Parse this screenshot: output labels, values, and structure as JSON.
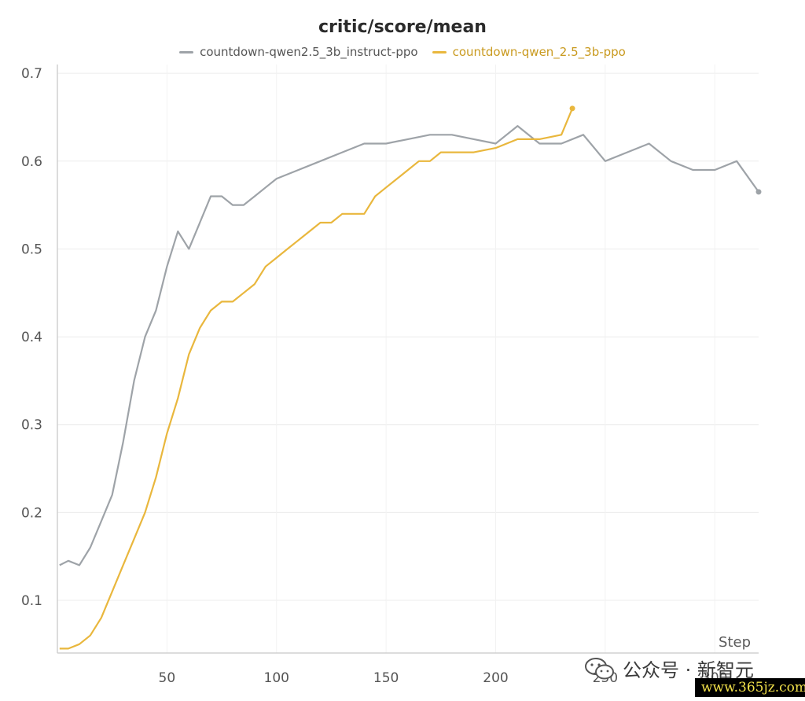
{
  "chart_data": {
    "type": "line",
    "title": "critic/score/mean",
    "xlabel": "Step",
    "ylabel": "",
    "xlim": [
      0,
      320
    ],
    "ylim": [
      0.04,
      0.71
    ],
    "grid": true,
    "legend_position": "top-center",
    "x_ticks": [
      50,
      100,
      150,
      200,
      250,
      300
    ],
    "y_ticks": [
      0.1,
      0.2,
      0.3,
      0.4,
      0.5,
      0.6,
      0.7
    ],
    "series": [
      {
        "name": "countdown-qwen2.5_3b_instruct-ppo",
        "color": "#9ea3a8",
        "x": [
          1,
          5,
          10,
          15,
          20,
          25,
          30,
          35,
          40,
          45,
          50,
          55,
          60,
          65,
          70,
          75,
          80,
          85,
          90,
          95,
          100,
          110,
          120,
          130,
          140,
          150,
          160,
          170,
          180,
          190,
          200,
          210,
          220,
          230,
          240,
          250,
          260,
          270,
          280,
          290,
          300,
          310,
          320
        ],
        "y": [
          0.14,
          0.145,
          0.14,
          0.16,
          0.19,
          0.22,
          0.28,
          0.35,
          0.4,
          0.43,
          0.48,
          0.52,
          0.5,
          0.53,
          0.56,
          0.56,
          0.55,
          0.55,
          0.56,
          0.57,
          0.58,
          0.59,
          0.6,
          0.61,
          0.62,
          0.62,
          0.625,
          0.63,
          0.63,
          0.625,
          0.62,
          0.64,
          0.62,
          0.62,
          0.63,
          0.6,
          0.61,
          0.62,
          0.6,
          0.59,
          0.59,
          0.6,
          0.565
        ]
      },
      {
        "name": "countdown-qwen_2.5_3b-ppo",
        "color": "#e9b73d",
        "x": [
          1,
          5,
          10,
          15,
          20,
          25,
          30,
          35,
          40,
          45,
          50,
          55,
          60,
          65,
          70,
          75,
          80,
          85,
          90,
          95,
          100,
          105,
          110,
          115,
          120,
          125,
          130,
          135,
          140,
          145,
          150,
          155,
          160,
          165,
          170,
          175,
          180,
          190,
          200,
          210,
          220,
          230,
          235
        ],
        "y": [
          0.045,
          0.045,
          0.05,
          0.06,
          0.08,
          0.11,
          0.14,
          0.17,
          0.2,
          0.24,
          0.29,
          0.33,
          0.38,
          0.41,
          0.43,
          0.44,
          0.44,
          0.45,
          0.46,
          0.48,
          0.49,
          0.5,
          0.51,
          0.52,
          0.53,
          0.53,
          0.54,
          0.54,
          0.54,
          0.56,
          0.57,
          0.58,
          0.59,
          0.6,
          0.6,
          0.61,
          0.61,
          0.61,
          0.615,
          0.625,
          0.625,
          0.63,
          0.66
        ]
      }
    ]
  },
  "watermark": {
    "text": "公众号 · 新智元",
    "icon": "wechat-icon",
    "site": "www.365jz.com"
  }
}
